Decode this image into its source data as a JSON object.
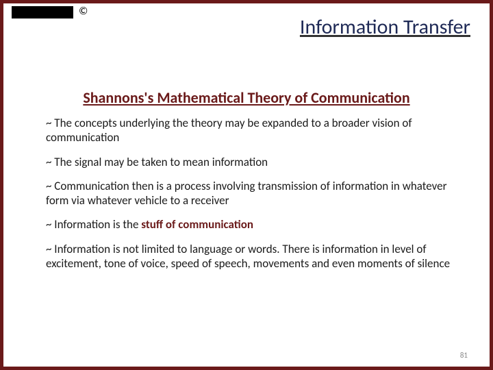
{
  "colors": {
    "border": "#6a1a1a",
    "title": "#1f2a56",
    "subtitle": "#6a1a1a",
    "body_text": "#1a1a1a",
    "emphasis": "#6a1a1a",
    "background": "#ffffff",
    "pagenum": "#888888",
    "blackbar": "#000000"
  },
  "typography": {
    "title_fontsize": 30,
    "subtitle_fontsize": 22,
    "body_fontsize": 17,
    "pagenum_fontsize": 11,
    "font_family": "Calibri"
  },
  "header": {
    "copyright_symbol": "©",
    "title": "Information Transfer"
  },
  "subtitle": "Shannons's Mathematical Theory of Communication",
  "bullets": [
    {
      "text": "~ The concepts underlying the theory may be expanded to a broader vision of communication"
    },
    {
      "text": "~ The signal may be taken to mean information"
    },
    {
      "text": "~ Communication then is a process involving transmission of information in whatever form via whatever vehicle to a receiver"
    },
    {
      "prefix": "~ Information is the ",
      "emphasis": "stuff of communication",
      "suffix": ""
    },
    {
      "text": "~ Information is not limited to language or words. There is information in level of excitement, tone of voice, speed of speech, movements and even moments of silence"
    }
  ],
  "page_number": "81"
}
